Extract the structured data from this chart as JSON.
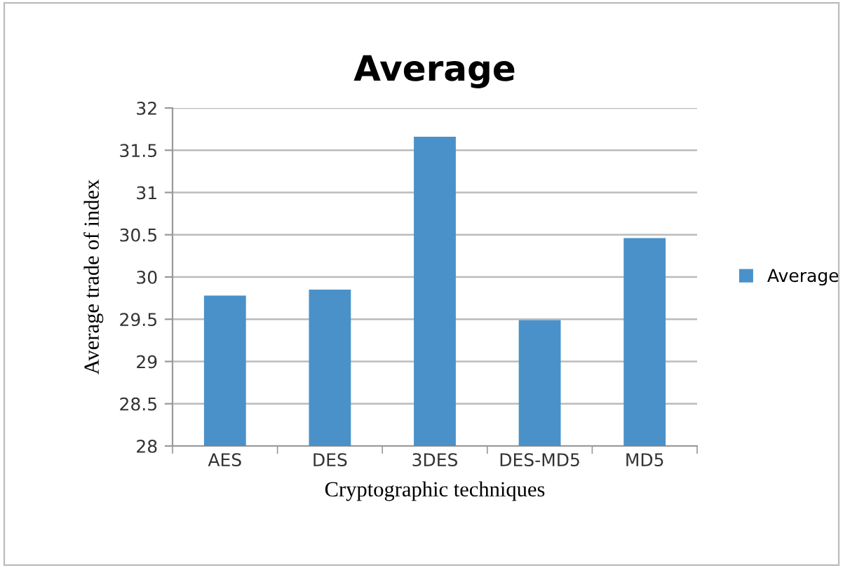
{
  "chart_data": {
    "type": "bar",
    "title": "Average",
    "xlabel": "Cryptographic techniques",
    "ylabel": "Average trade of index",
    "categories": [
      "AES",
      "DES",
      "3DES",
      "DES-MD5",
      "MD5"
    ],
    "series": [
      {
        "name": "Average",
        "color": "#4a91c9",
        "values": [
          29.78,
          29.85,
          31.66,
          29.49,
          30.46
        ]
      }
    ],
    "ylim": [
      28,
      32
    ],
    "yticks": [
      28,
      28.5,
      29,
      29.5,
      30,
      30.5,
      31,
      31.5,
      32
    ],
    "grid": "y",
    "legend": "right"
  }
}
